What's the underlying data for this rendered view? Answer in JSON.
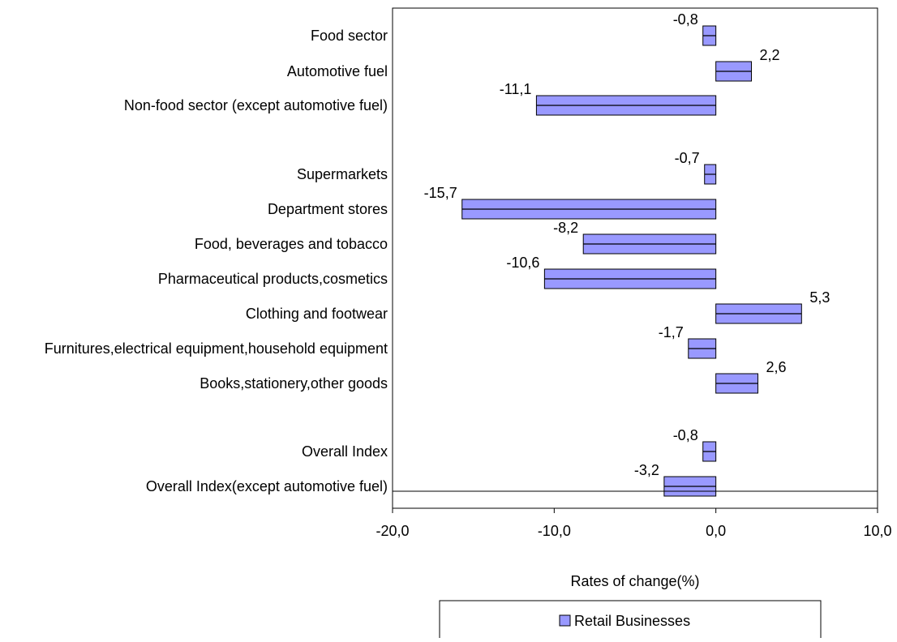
{
  "chart_data": {
    "type": "bar",
    "orientation": "horizontal",
    "categories": [
      "Food sector",
      "Automotive fuel",
      "Non-food sector (except automotive fuel)",
      "Supermarkets",
      "Department stores",
      "Food, beverages and tobacco",
      "Pharmaceutical products,cosmetics",
      "Clothing and footwear",
      "Furnitures,electrical equipment,household equipment",
      "Books,stationery,other goods",
      "Overall Index",
      "Overall Index(except automotive fuel)"
    ],
    "series": [
      {
        "name": "Retail Businesses",
        "color": "#9999ff",
        "values": [
          -0.8,
          2.2,
          -11.1,
          -0.7,
          -15.7,
          -8.2,
          -10.6,
          5.3,
          -1.7,
          2.6,
          -0.8,
          -3.2
        ],
        "value_labels": [
          "-0,8",
          "2,2",
          "-11,1",
          "-0,7",
          "-15,7",
          "-8,2",
          "-10,6",
          "5,3",
          "-1,7",
          "2,6",
          "-0,8",
          "-3,2"
        ]
      }
    ],
    "xlabel": "Rates of change(%)",
    "xlim": [
      -20,
      10
    ],
    "xticks": [
      -20,
      -10,
      0,
      10
    ],
    "xtick_labels": [
      "-20,0",
      "-10,0",
      "0,0",
      "10,0"
    ],
    "grid": false,
    "legend": {
      "position": "bottom",
      "entries": [
        "Retail Businesses"
      ]
    }
  }
}
